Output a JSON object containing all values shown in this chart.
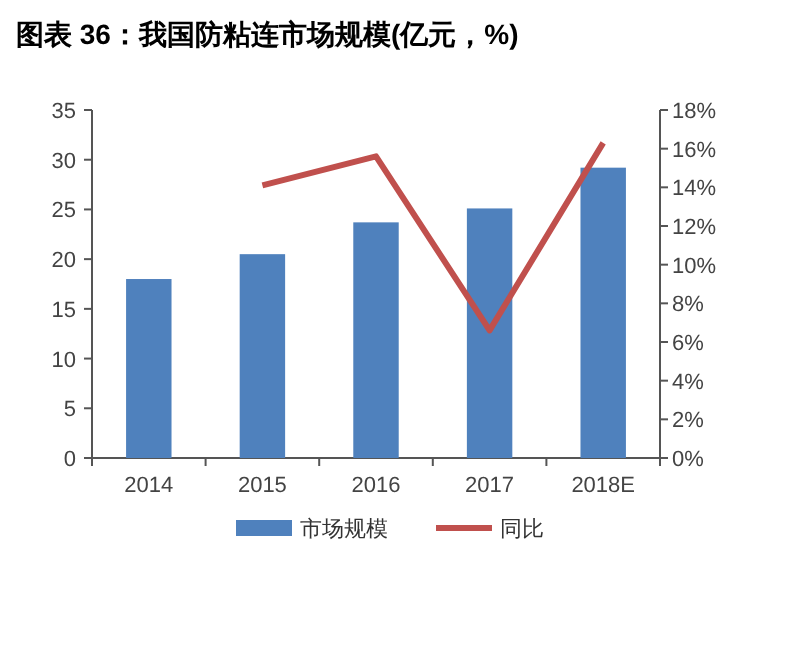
{
  "chart_data": {
    "type": "bar",
    "title": "图表 36：我国防粘连市场规模(亿元，%)",
    "categories": [
      "2014",
      "2015",
      "2016",
      "2017",
      "2018E"
    ],
    "series": [
      {
        "name": "市场规模",
        "color": "#4f81bd",
        "values": [
          18.0,
          20.5,
          23.7,
          25.1,
          29.2
        ]
      },
      {
        "name": "同比",
        "type": "line",
        "axis": "y2",
        "color": "#c0504d",
        "values": [
          null,
          14.1,
          15.6,
          6.6,
          16.3
        ]
      }
    ],
    "ylim": [
      0,
      35
    ],
    "yticks": [
      0,
      5,
      10,
      15,
      20,
      25,
      30,
      35
    ],
    "y2lim": [
      0,
      18
    ],
    "y2ticks": [
      {
        "value": 0,
        "label": "0%"
      },
      {
        "value": 2,
        "label": "2%"
      },
      {
        "value": 4,
        "label": "4%"
      },
      {
        "value": 6,
        "label": "6%"
      },
      {
        "value": 8,
        "label": "8%"
      },
      {
        "value": 10,
        "label": "10%"
      },
      {
        "value": 12,
        "label": "12%"
      },
      {
        "value": 14,
        "label": "14%"
      },
      {
        "value": 16,
        "label": "16%"
      },
      {
        "value": 18,
        "label": "18%"
      }
    ],
    "grid": false,
    "legend": "bottom",
    "marker": "none"
  }
}
